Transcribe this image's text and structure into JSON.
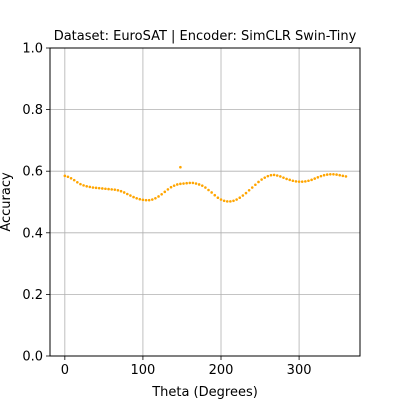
{
  "chart_data": {
    "type": "scatter",
    "title": "Dataset: EuroSAT | Encoder: SimCLR Swin-Tiny",
    "xlabel": "Theta (Degrees)",
    "ylabel": "Accuracy",
    "xlim": [
      -19,
      378
    ],
    "ylim": [
      0.0,
      1.0
    ],
    "xticks": [
      0,
      100,
      200,
      300
    ],
    "yticks": [
      0.0,
      0.2,
      0.4,
      0.6,
      0.8,
      1.0
    ],
    "xtick_labels": [
      "0",
      "100",
      "200",
      "300"
    ],
    "ytick_labels": [
      "0.0",
      "0.2",
      "0.4",
      "0.6",
      "0.8",
      "1.0"
    ],
    "grid": true,
    "marker_color": "#FFA500",
    "series": [
      {
        "x": [
          0,
          4,
          8,
          12,
          16,
          20,
          24,
          28,
          32,
          36,
          40,
          44,
          48,
          52,
          56,
          60,
          64,
          68,
          72,
          76,
          80,
          84,
          88,
          92,
          96,
          100,
          104,
          108,
          112,
          116,
          120,
          124,
          128,
          132,
          136,
          140,
          144,
          148,
          152,
          156,
          160,
          164,
          168,
          172,
          176,
          180,
          184,
          188,
          192,
          196,
          200,
          204,
          208,
          212,
          216,
          220,
          224,
          228,
          232,
          236,
          240,
          244,
          248,
          252,
          256,
          260,
          264,
          268,
          272,
          276,
          280,
          284,
          288,
          292,
          296,
          300,
          304,
          308,
          312,
          316,
          320,
          324,
          328,
          332,
          336,
          340,
          344,
          348,
          352,
          356,
          360,
          148
        ],
        "y": [
          0.585,
          0.582,
          0.577,
          0.571,
          0.564,
          0.558,
          0.554,
          0.551,
          0.549,
          0.547,
          0.546,
          0.545,
          0.544,
          0.543,
          0.542,
          0.541,
          0.54,
          0.538,
          0.535,
          0.531,
          0.526,
          0.521,
          0.516,
          0.512,
          0.509,
          0.507,
          0.506,
          0.506,
          0.508,
          0.512,
          0.518,
          0.525,
          0.533,
          0.541,
          0.548,
          0.553,
          0.557,
          0.559,
          0.56,
          0.561,
          0.562,
          0.562,
          0.56,
          0.557,
          0.553,
          0.547,
          0.539,
          0.531,
          0.522,
          0.514,
          0.508,
          0.504,
          0.502,
          0.502,
          0.504,
          0.508,
          0.514,
          0.521,
          0.529,
          0.538,
          0.547,
          0.556,
          0.565,
          0.573,
          0.579,
          0.584,
          0.587,
          0.588,
          0.586,
          0.583,
          0.579,
          0.575,
          0.572,
          0.569,
          0.567,
          0.566,
          0.566,
          0.567,
          0.569,
          0.572,
          0.576,
          0.58,
          0.584,
          0.587,
          0.589,
          0.59,
          0.59,
          0.589,
          0.587,
          0.585,
          0.583,
          0.613
        ]
      }
    ]
  }
}
